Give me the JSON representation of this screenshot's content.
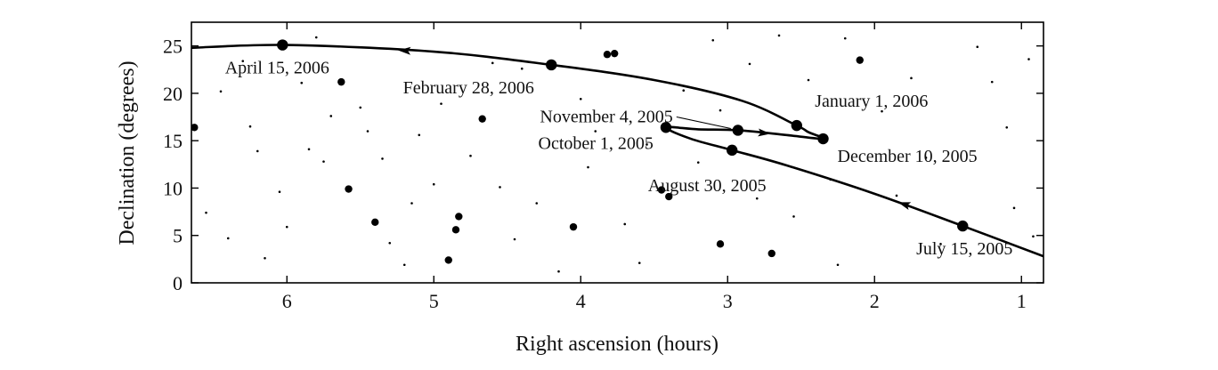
{
  "chart_data": {
    "type": "scatter",
    "title": "",
    "xlabel": "Right ascension (hours)",
    "ylabel": "Declination (degrees)",
    "xlim": [
      6.65,
      0.85
    ],
    "ylim": [
      0,
      27.5
    ],
    "x_reversed": true,
    "xticks": [
      6,
      5,
      4,
      3,
      2,
      1
    ],
    "yticks": [
      0,
      5,
      10,
      15,
      20,
      25
    ],
    "grid": false,
    "legend": "none",
    "line_color": "#000000",
    "path": {
      "name": "",
      "x": [
        0.85,
        1.4,
        2.0,
        2.6,
        2.97,
        3.25,
        3.42,
        3.2,
        2.93,
        2.6,
        2.35,
        2.45,
        2.53,
        2.9,
        3.5,
        4.2,
        5.0,
        6.0,
        6.65
      ],
      "y": [
        2.8,
        6.0,
        9.4,
        12.4,
        14.0,
        15.2,
        16.4,
        16.2,
        16.1,
        15.6,
        15.2,
        15.9,
        16.6,
        19.2,
        21.4,
        23.0,
        24.4,
        25.1,
        24.8
      ]
    },
    "direction_arrows": [
      {
        "x": 1.8,
        "y": 8.3
      },
      {
        "x": 2.75,
        "y": 15.8
      },
      {
        "x": 5.2,
        "y": 24.5
      }
    ],
    "dated_positions": [
      {
        "label": "July 15, 2005",
        "x": 1.4,
        "y": 6.0
      },
      {
        "label": "August 30, 2005",
        "x": 2.97,
        "y": 14.0
      },
      {
        "label": "October 1, 2005",
        "x": 3.42,
        "y": 16.4
      },
      {
        "label": "November 4, 2005",
        "x": 2.93,
        "y": 16.1
      },
      {
        "label": "December 10, 2005",
        "x": 2.35,
        "y": 15.2
      },
      {
        "label": "January 1, 2006",
        "x": 2.53,
        "y": 16.6
      },
      {
        "label": "February 28, 2006",
        "x": 4.2,
        "y": 23.0
      },
      {
        "label": "April 15, 2006",
        "x": 6.03,
        "y": 25.1
      }
    ],
    "bright_stars": [
      {
        "x": 6.63,
        "y": 16.4
      },
      {
        "x": 5.63,
        "y": 21.2
      },
      {
        "x": 5.58,
        "y": 9.9
      },
      {
        "x": 5.4,
        "y": 6.4
      },
      {
        "x": 4.85,
        "y": 5.6
      },
      {
        "x": 4.83,
        "y": 7.0
      },
      {
        "x": 4.9,
        "y": 2.4
      },
      {
        "x": 4.67,
        "y": 17.3
      },
      {
        "x": 4.05,
        "y": 5.9
      },
      {
        "x": 3.82,
        "y": 24.1
      },
      {
        "x": 3.77,
        "y": 24.2
      },
      {
        "x": 3.45,
        "y": 9.8
      },
      {
        "x": 3.4,
        "y": 9.1
      },
      {
        "x": 3.05,
        "y": 4.1
      },
      {
        "x": 2.7,
        "y": 3.1
      },
      {
        "x": 2.1,
        "y": 23.5
      }
    ],
    "faint_stars": [
      {
        "x": 6.45,
        "y": 20.2
      },
      {
        "x": 6.3,
        "y": 23.4
      },
      {
        "x": 6.25,
        "y": 16.5
      },
      {
        "x": 6.2,
        "y": 13.9
      },
      {
        "x": 6.05,
        "y": 9.6
      },
      {
        "x": 6.55,
        "y": 7.4
      },
      {
        "x": 6.4,
        "y": 4.7
      },
      {
        "x": 6.0,
        "y": 5.9
      },
      {
        "x": 5.9,
        "y": 21.1
      },
      {
        "x": 5.85,
        "y": 14.1
      },
      {
        "x": 5.75,
        "y": 12.8
      },
      {
        "x": 5.7,
        "y": 17.6
      },
      {
        "x": 5.5,
        "y": 18.5
      },
      {
        "x": 5.45,
        "y": 16.0
      },
      {
        "x": 5.35,
        "y": 13.1
      },
      {
        "x": 5.3,
        "y": 4.2
      },
      {
        "x": 5.2,
        "y": 1.9
      },
      {
        "x": 5.1,
        "y": 15.6
      },
      {
        "x": 5.0,
        "y": 10.4
      },
      {
        "x": 4.95,
        "y": 18.9
      },
      {
        "x": 4.75,
        "y": 13.4
      },
      {
        "x": 4.6,
        "y": 23.2
      },
      {
        "x": 4.55,
        "y": 10.1
      },
      {
        "x": 4.4,
        "y": 22.6
      },
      {
        "x": 4.3,
        "y": 8.4
      },
      {
        "x": 4.15,
        "y": 1.2
      },
      {
        "x": 4.0,
        "y": 19.4
      },
      {
        "x": 3.95,
        "y": 12.2
      },
      {
        "x": 3.7,
        "y": 6.2
      },
      {
        "x": 3.6,
        "y": 2.1
      },
      {
        "x": 3.3,
        "y": 20.3
      },
      {
        "x": 3.2,
        "y": 12.7
      },
      {
        "x": 3.05,
        "y": 18.2
      },
      {
        "x": 2.85,
        "y": 23.1
      },
      {
        "x": 2.8,
        "y": 8.9
      },
      {
        "x": 2.55,
        "y": 7.0
      },
      {
        "x": 2.45,
        "y": 21.4
      },
      {
        "x": 2.3,
        "y": 10.9
      },
      {
        "x": 2.25,
        "y": 1.9
      },
      {
        "x": 2.2,
        "y": 25.8
      },
      {
        "x": 1.95,
        "y": 18.1
      },
      {
        "x": 1.85,
        "y": 9.2
      },
      {
        "x": 1.75,
        "y": 21.6
      },
      {
        "x": 1.65,
        "y": 13.2
      },
      {
        "x": 1.55,
        "y": 4.1
      },
      {
        "x": 1.3,
        "y": 24.9
      },
      {
        "x": 1.2,
        "y": 21.2
      },
      {
        "x": 1.1,
        "y": 16.4
      },
      {
        "x": 1.05,
        "y": 7.9
      },
      {
        "x": 0.95,
        "y": 23.6
      },
      {
        "x": 0.92,
        "y": 4.9
      },
      {
        "x": 3.9,
        "y": 16.0
      },
      {
        "x": 3.55,
        "y": 14.6
      },
      {
        "x": 5.15,
        "y": 8.4
      },
      {
        "x": 6.15,
        "y": 2.6
      },
      {
        "x": 4.45,
        "y": 4.6
      },
      {
        "x": 3.1,
        "y": 25.6
      },
      {
        "x": 2.65,
        "y": 26.1
      },
      {
        "x": 5.8,
        "y": 25.9
      }
    ]
  }
}
